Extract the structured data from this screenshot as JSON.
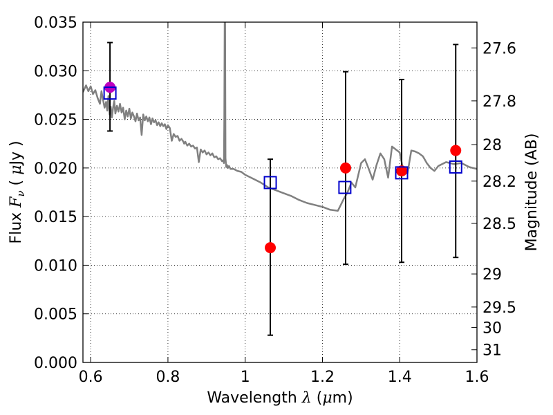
{
  "chart_data": {
    "type": "scatter",
    "xlabel": {
      "prefix": "Wavelength  ",
      "symbol": "λ",
      "units_open": " (",
      "mu": "μ",
      "units_rest": "m)"
    },
    "ylabel": {
      "prefix": "Flux  ",
      "symbol": "F",
      "subscript": "ν",
      "units_open": "  ( ",
      "mu": "μ",
      "units_rest": "Jy )"
    },
    "y2label": "Magnitude (AB)",
    "xlim": [
      0.58,
      1.6
    ],
    "ylim": [
      0.0,
      0.035
    ],
    "grid": true,
    "x_ticks": [
      {
        "value": 0.6,
        "label": "0.6"
      },
      {
        "value": 0.8,
        "label": "0.8"
      },
      {
        "value": 1.0,
        "label": "1"
      },
      {
        "value": 1.2,
        "label": "1.2"
      },
      {
        "value": 1.4,
        "label": "1.4"
      },
      {
        "value": 1.6,
        "label": "1.6"
      }
    ],
    "y_ticks": [
      {
        "value": 0.0,
        "label": "0.000"
      },
      {
        "value": 0.005,
        "label": "0.005"
      },
      {
        "value": 0.01,
        "label": "0.010"
      },
      {
        "value": 0.015,
        "label": "0.015"
      },
      {
        "value": 0.02,
        "label": "0.020"
      },
      {
        "value": 0.025,
        "label": "0.025"
      },
      {
        "value": 0.03,
        "label": "0.030"
      },
      {
        "value": 0.035,
        "label": "0.035"
      }
    ],
    "y2_ticks": [
      {
        "flux": 0.03235,
        "label": "27.6"
      },
      {
        "flux": 0.0269,
        "label": "27.8"
      },
      {
        "flux": 0.0224,
        "label": "28"
      },
      {
        "flux": 0.01865,
        "label": "28.2"
      },
      {
        "flux": 0.0143,
        "label": "28.5"
      },
      {
        "flux": 0.0091,
        "label": "29"
      },
      {
        "flux": 0.0057,
        "label": "29.5"
      },
      {
        "flux": 0.0036,
        "label": "30"
      },
      {
        "flux": 0.0013,
        "label": "31"
      }
    ],
    "series": [
      {
        "kind": "line",
        "color": "#808080",
        "x": [
          0.58,
          0.588,
          0.594,
          0.6,
          0.606,
          0.612,
          0.618,
          0.624,
          0.628,
          0.632,
          0.636,
          0.64,
          0.643,
          0.646,
          0.649,
          0.652,
          0.655,
          0.658,
          0.661,
          0.664,
          0.668,
          0.672,
          0.676,
          0.68,
          0.684,
          0.688,
          0.692,
          0.696,
          0.7,
          0.704,
          0.708,
          0.712,
          0.716,
          0.72,
          0.724,
          0.728,
          0.732,
          0.736,
          0.74,
          0.744,
          0.748,
          0.752,
          0.756,
          0.76,
          0.764,
          0.768,
          0.772,
          0.776,
          0.78,
          0.784,
          0.788,
          0.792,
          0.796,
          0.8,
          0.805,
          0.81,
          0.815,
          0.82,
          0.825,
          0.83,
          0.835,
          0.84,
          0.842,
          0.845,
          0.85,
          0.855,
          0.86,
          0.865,
          0.87,
          0.875,
          0.88,
          0.885,
          0.89,
          0.895,
          0.9,
          0.905,
          0.91,
          0.915,
          0.92,
          0.925,
          0.93,
          0.935,
          0.94,
          0.943,
          0.945,
          0.946,
          0.947,
          0.948,
          0.949,
          0.95,
          0.951,
          0.953,
          0.955,
          0.958,
          0.962,
          0.97,
          0.98,
          0.99,
          1.0,
          1.02,
          1.04,
          1.06,
          1.08,
          1.1,
          1.12,
          1.14,
          1.16,
          1.18,
          1.2,
          1.22,
          1.24,
          1.255,
          1.265,
          1.275,
          1.285,
          1.3,
          1.31,
          1.32,
          1.33,
          1.34,
          1.35,
          1.36,
          1.37,
          1.38,
          1.39,
          1.4,
          1.41,
          1.42,
          1.43,
          1.44,
          1.45,
          1.46,
          1.47,
          1.48,
          1.49,
          1.5,
          1.52,
          1.54,
          1.56,
          1.58,
          1.6
        ],
        "y": [
          0.0278,
          0.0285,
          0.0279,
          0.0284,
          0.0276,
          0.028,
          0.0272,
          0.0266,
          0.0279,
          0.027,
          0.0262,
          0.0268,
          0.0259,
          0.0274,
          0.0255,
          0.0263,
          0.0252,
          0.0262,
          0.0269,
          0.0256,
          0.0264,
          0.0258,
          0.0266,
          0.0257,
          0.0262,
          0.025,
          0.0259,
          0.0253,
          0.0261,
          0.0251,
          0.0257,
          0.0253,
          0.0248,
          0.0256,
          0.0249,
          0.0252,
          0.0234,
          0.0255,
          0.0249,
          0.0253,
          0.0248,
          0.0252,
          0.0245,
          0.0251,
          0.0247,
          0.0249,
          0.0244,
          0.0247,
          0.0243,
          0.0246,
          0.0243,
          0.0245,
          0.024,
          0.0244,
          0.0241,
          0.0228,
          0.0235,
          0.0232,
          0.0233,
          0.0228,
          0.023,
          0.0227,
          0.0225,
          0.0227,
          0.0223,
          0.0225,
          0.0222,
          0.0223,
          0.022,
          0.0221,
          0.0206,
          0.0219,
          0.0216,
          0.0218,
          0.0214,
          0.0216,
          0.0213,
          0.0215,
          0.0211,
          0.0212,
          0.0209,
          0.021,
          0.0207,
          0.0208,
          0.0205,
          0.025,
          0.036,
          0.036,
          0.021,
          0.0205,
          0.0201,
          0.0203,
          0.02,
          0.0202,
          0.0199,
          0.0199,
          0.0197,
          0.0196,
          0.0193,
          0.0189,
          0.0185,
          0.018,
          0.0177,
          0.0174,
          0.0171,
          0.0167,
          0.0164,
          0.0162,
          0.016,
          0.0157,
          0.0156,
          0.0168,
          0.0175,
          0.0185,
          0.018,
          0.0205,
          0.0209,
          0.0199,
          0.0188,
          0.0203,
          0.0215,
          0.0209,
          0.019,
          0.0222,
          0.0219,
          0.0216,
          0.0196,
          0.0194,
          0.0218,
          0.0217,
          0.0215,
          0.0212,
          0.0205,
          0.02,
          0.0197,
          0.0202,
          0.0206,
          0.0204,
          0.0205,
          0.0201,
          0.0199
        ]
      },
      {
        "kind": "errorbar",
        "color": "#000000",
        "x": [
          0.65,
          1.065,
          1.26,
          1.405,
          1.545
        ],
        "y": [
          0.0283,
          0.0118,
          0.02,
          0.0197,
          0.0218
        ],
        "low": [
          0.0238,
          0.0028,
          0.0101,
          0.0103,
          0.0108
        ],
        "high": [
          0.0329,
          0.0209,
          0.0299,
          0.0291,
          0.0327
        ]
      },
      {
        "kind": "marker",
        "marker": "circle",
        "colors": [
          "#bf00bf",
          "#ff0000",
          "#ff0000",
          "#ff0000",
          "#ff0000"
        ],
        "x": [
          0.65,
          1.065,
          1.26,
          1.405,
          1.545
        ],
        "y": [
          0.0283,
          0.0118,
          0.02,
          0.0197,
          0.0218
        ]
      },
      {
        "kind": "marker",
        "marker": "open-square",
        "color": "#0000cc",
        "x": [
          0.65,
          1.065,
          1.258,
          1.405,
          1.545
        ],
        "y": [
          0.0277,
          0.0185,
          0.018,
          0.0195,
          0.0201
        ]
      }
    ]
  }
}
